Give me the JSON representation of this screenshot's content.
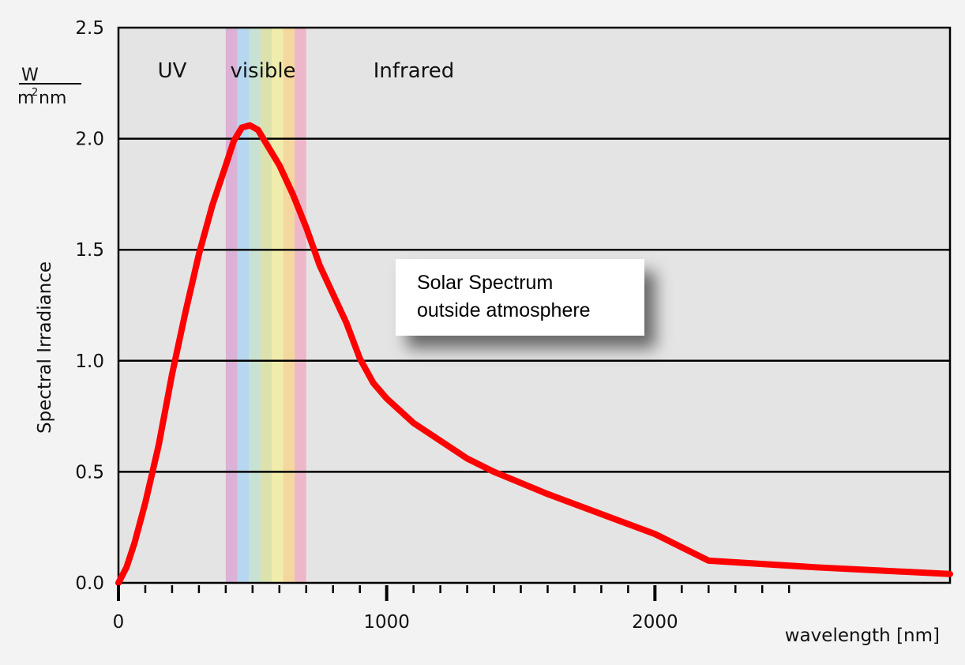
{
  "chart_data": {
    "type": "line",
    "title": "",
    "xlabel": "wavelength [nm]",
    "ylabel": "Spectral Irradiance",
    "y_unit": {
      "numerator": "W",
      "denominator_base": "m",
      "denominator_sup": "2",
      "denominator_tail": "nm"
    },
    "xlim": [
      0,
      3100
    ],
    "ylim": [
      0,
      2.5
    ],
    "x_ticks": [
      0,
      1000,
      2000
    ],
    "x_tick_labels": [
      "0",
      "1000",
      "2000"
    ],
    "y_ticks": [
      0,
      0.5,
      1.0,
      1.5,
      2.0,
      2.5
    ],
    "y_tick_labels": [
      "0.0",
      "0.5",
      "1.0",
      "1.5",
      "2.0",
      "2.5"
    ],
    "grid": true,
    "regions": [
      {
        "name": "UV",
        "x_center": 210
      },
      {
        "name": "visible",
        "x_center": 530
      },
      {
        "name": "Infrared",
        "x_center": 1100
      }
    ],
    "visible_band": {
      "start": 400,
      "end": 700,
      "colors": [
        "#d9a3d1",
        "#a9d4f2",
        "#bfe2d1",
        "#d8e29f",
        "#f3f09c",
        "#f8d48b",
        "#f0aac1"
      ]
    },
    "annotation": {
      "lines": [
        "Solar Spectrum",
        "outside atmosphere"
      ]
    },
    "series": [
      {
        "color": "#ff0000",
        "x": [
          0,
          30,
          60,
          100,
          150,
          200,
          250,
          300,
          350,
          400,
          430,
          460,
          490,
          520,
          550,
          600,
          650,
          700,
          750,
          800,
          850,
          900,
          950,
          1000,
          1100,
          1200,
          1300,
          1400,
          1500,
          1600,
          1800,
          2000,
          2200,
          2600,
          3100
        ],
        "y": [
          0.0,
          0.07,
          0.18,
          0.36,
          0.62,
          0.94,
          1.22,
          1.48,
          1.7,
          1.88,
          1.99,
          2.05,
          2.06,
          2.04,
          1.98,
          1.88,
          1.75,
          1.6,
          1.43,
          1.3,
          1.17,
          1.01,
          0.9,
          0.83,
          0.72,
          0.64,
          0.56,
          0.5,
          0.45,
          0.4,
          0.31,
          0.22,
          0.1,
          0.07,
          0.04
        ]
      }
    ]
  }
}
